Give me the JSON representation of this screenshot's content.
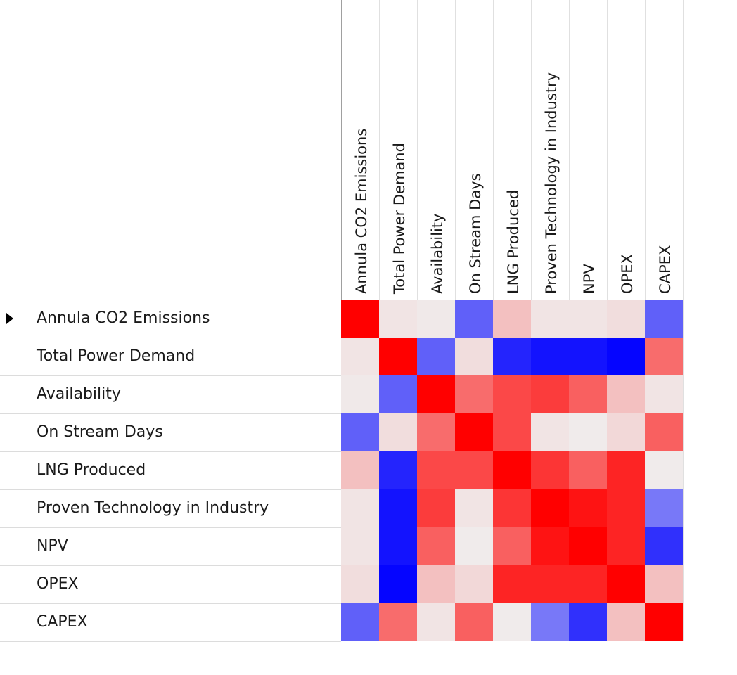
{
  "chart_data": {
    "type": "heatmap",
    "title": "",
    "xlabel": "",
    "ylabel": "",
    "columns": [
      "Annula CO2 Emissions",
      "Total Power Demand",
      "Availability",
      "On Stream Days",
      "LNG Produced",
      "Proven Technology in Industry",
      "NPV",
      "OPEX",
      "CAPEX"
    ],
    "rows": [
      "Annula CO2 Emissions",
      "Total Power Demand",
      "Availability",
      "On Stream Days",
      "LNG Produced",
      "Proven Technology in Industry",
      "NPV",
      "OPEX",
      "CAPEX"
    ],
    "values": [
      [
        1.0,
        0.05,
        0.03,
        -0.6,
        0.2,
        0.05,
        0.05,
        0.08,
        -0.6
      ],
      [
        0.05,
        1.0,
        -0.6,
        0.08,
        -0.85,
        -0.92,
        -0.92,
        -0.98,
        0.55
      ],
      [
        0.03,
        -0.6,
        1.0,
        0.55,
        0.7,
        0.75,
        0.6,
        0.2,
        0.05
      ],
      [
        -0.6,
        0.08,
        0.55,
        1.0,
        0.7,
        0.05,
        0.02,
        0.1,
        0.6
      ],
      [
        0.2,
        -0.85,
        0.7,
        0.7,
        1.0,
        0.78,
        0.6,
        0.85,
        0.02
      ],
      [
        0.05,
        -0.92,
        0.75,
        0.05,
        0.78,
        1.0,
        0.92,
        0.85,
        -0.5
      ],
      [
        0.05,
        -0.92,
        0.6,
        0.02,
        0.6,
        0.92,
        1.0,
        0.85,
        -0.8
      ],
      [
        0.08,
        -0.98,
        0.2,
        0.1,
        0.85,
        0.85,
        0.85,
        1.0,
        0.2
      ],
      [
        -0.6,
        0.55,
        0.05,
        0.6,
        0.02,
        -0.5,
        -0.8,
        0.2,
        1.0
      ]
    ],
    "value_range": [
      -1,
      1
    ],
    "color_scale": {
      "negative": "#0000ff",
      "neutral": "#f0f0f0",
      "positive": "#ff0000"
    },
    "grid": true,
    "legend": "none"
  },
  "colors": {
    "row_divider": "#dcdcdc",
    "header_divider": "#a0a0a0",
    "column_divider": "#e0e0e0"
  },
  "icons": {
    "selected_row_indicator": "triangle-right-icon"
  }
}
